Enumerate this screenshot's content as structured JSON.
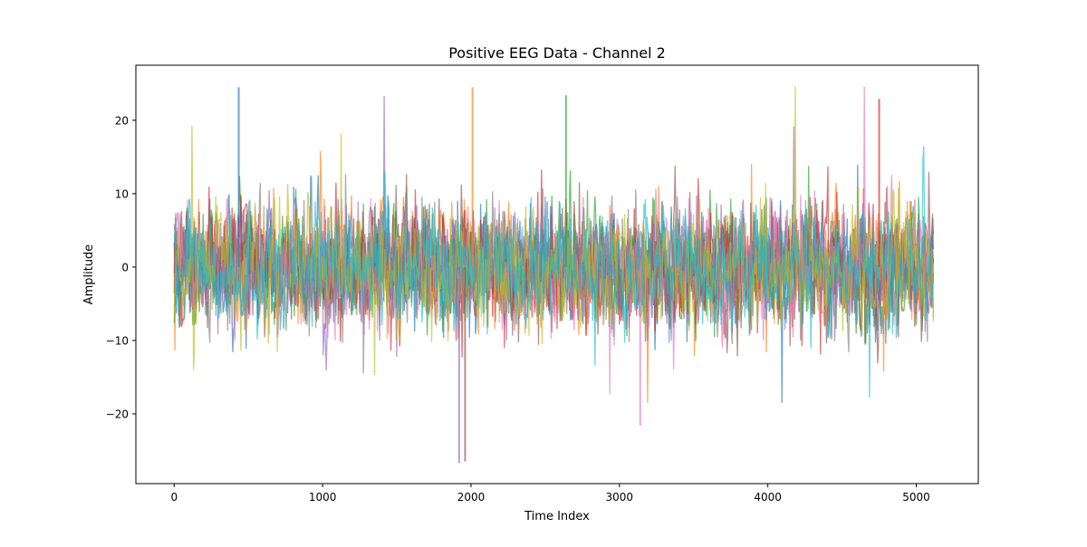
{
  "chart_data": {
    "type": "line",
    "title": "Positive EEG Data - Channel 2",
    "xlabel": "Time Index",
    "ylabel": "Amplitude",
    "xlim": [
      -258,
      5418
    ],
    "ylim": [
      -29.5,
      27.5
    ],
    "x_ticks": [
      0,
      1000,
      2000,
      3000,
      4000,
      5000
    ],
    "x_tick_labels": [
      "0",
      "1000",
      "2000",
      "3000",
      "4000",
      "5000"
    ],
    "y_ticks": [
      -20,
      -10,
      0,
      10,
      20
    ],
    "y_tick_labels": [
      "−20",
      "−10",
      "0",
      "10",
      "20"
    ],
    "grid": false,
    "legend": "none",
    "n_samples": 5120,
    "series_colors": [
      "#1f77b4",
      "#ff7f0e",
      "#2ca02c",
      "#d62728",
      "#9467bd",
      "#8c564b",
      "#e377c2",
      "#7f7f7f",
      "#bcbd22",
      "#17becf"
    ],
    "series_alpha": 0.65,
    "value_range_approx": [
      -26.8,
      24.6
    ],
    "notable_peaks": [
      {
        "x": 435,
        "y": 24.5
      },
      {
        "x": 2010,
        "y": 24.5
      },
      {
        "x": 2640,
        "y": 23.4
      },
      {
        "x": 4750,
        "y": 22.9
      },
      {
        "x": 1920,
        "y": -26.7
      },
      {
        "x": 1960,
        "y": -26.5
      },
      {
        "x": 3140,
        "y": -21.6
      }
    ]
  }
}
